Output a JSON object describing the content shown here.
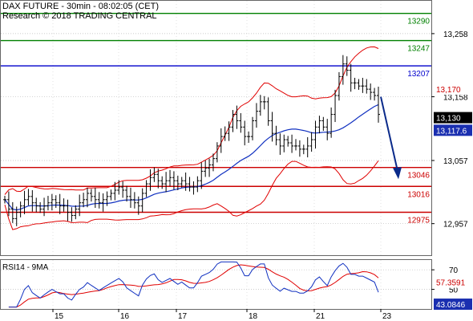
{
  "header": {
    "title": "DAX FUTURE - 30min - 08:02:05 (CET)",
    "credit": "Research © 2018 TRADING CENTRAL"
  },
  "rsi_label": "RSI14 - 9MA",
  "colors": {
    "price": "#000000",
    "bollinger": "#e00000",
    "moving_average": "#1030c0",
    "resistance": "#008000",
    "pivot": "#0000cc",
    "support": "#cc0000",
    "arrow": "#0a2a8a"
  },
  "chart_data": [
    {
      "type": "line",
      "name": "price",
      "ylim": [
        12907,
        13310
      ],
      "yticks": [
        {
          "value": 13258,
          "label": "13,258"
        },
        {
          "value": 13158,
          "label": "13,158"
        },
        {
          "value": 13057,
          "label": "13,057"
        },
        {
          "value": 12957,
          "label": "12,957"
        }
      ],
      "xticks": [
        "15",
        "16",
        "17",
        "18",
        "21",
        "23"
      ],
      "levels": [
        {
          "value": 13290,
          "label": "13290",
          "kind": "resistance"
        },
        {
          "value": 13247,
          "label": "13247",
          "kind": "resistance"
        },
        {
          "value": 13207,
          "label": "13207",
          "kind": "pivot"
        },
        {
          "value": 13046,
          "label": "13046",
          "kind": "support"
        },
        {
          "value": 13016,
          "label": "13016",
          "kind": "support"
        },
        {
          "value": 12975,
          "label": "12975",
          "kind": "support"
        }
      ],
      "price_tags": [
        {
          "value": 13170,
          "label": "13,170",
          "style": "red"
        },
        {
          "value": 13130,
          "label": "13,130",
          "style": "black"
        },
        {
          "value": 13117.6,
          "label": "13,117.6",
          "style": "blue"
        }
      ],
      "close": [
        12995,
        12980,
        12965,
        12975,
        12985,
        12995,
        13000,
        12990,
        12985,
        12980,
        12985,
        12990,
        12995,
        12990,
        12985,
        12985,
        12975,
        12970,
        12980,
        12990,
        12995,
        13005,
        13000,
        12995,
        12990,
        12995,
        13000,
        13005,
        13010,
        13015,
        13010,
        13000,
        12995,
        12990,
        12985,
        13005,
        13020,
        13030,
        13035,
        13025,
        13020,
        13025,
        13030,
        13025,
        13020,
        13025,
        13020,
        13015,
        13015,
        13025,
        13040,
        13045,
        13050,
        13060,
        13080,
        13095,
        13100,
        13110,
        13130,
        13120,
        13110,
        13095,
        13095,
        13120,
        13135,
        13150,
        13150,
        13120,
        13100,
        13090,
        13080,
        13090,
        13085,
        13080,
        13080,
        13075,
        13075,
        13080,
        13090,
        13110,
        13120,
        13110,
        13100,
        13130,
        13160,
        13190,
        13210,
        13200,
        13180,
        13180,
        13175,
        13175,
        13170,
        13165,
        13160,
        13130
      ]
    },
    {
      "type": "line",
      "name": "rsi",
      "ylim": [
        30,
        80
      ],
      "yticks": [
        {
          "value": 70,
          "label": "70"
        },
        {
          "value": 50,
          "label": "50"
        }
      ],
      "price_tags": [
        {
          "value": 57.3591,
          "label": "57.3591",
          "style": "red"
        },
        {
          "value": 43.0846,
          "label": "43.0846",
          "style": "blue"
        }
      ]
    }
  ]
}
